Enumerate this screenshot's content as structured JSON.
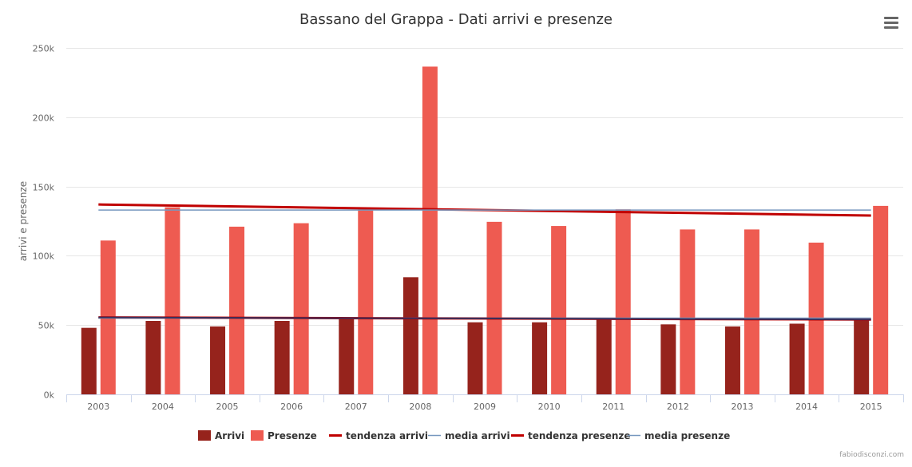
{
  "chart_data": {
    "type": "bar",
    "title": "Bassano del Grappa - Dati arrivi e presenze",
    "ylabel": "arrivi e presenze",
    "xlabel": "",
    "ylim": [
      0,
      250000
    ],
    "yticks": [
      0,
      50000,
      100000,
      150000,
      200000,
      250000
    ],
    "ytick_labels": [
      "0k",
      "50k",
      "100k",
      "150k",
      "200k",
      "250k"
    ],
    "categories": [
      "2003",
      "2004",
      "2005",
      "2006",
      "2007",
      "2008",
      "2009",
      "2010",
      "2011",
      "2012",
      "2013",
      "2014",
      "2015"
    ],
    "grid": true,
    "legend_position": "bottom",
    "series": [
      {
        "name": "Arrivi",
        "kind": "bar",
        "color": "#96231c",
        "values": [
          48000,
          53000,
          49000,
          53000,
          55000,
          84500,
          52000,
          52000,
          55000,
          50500,
          49000,
          51000,
          55000
        ]
      },
      {
        "name": "Presenze",
        "kind": "bar",
        "color": "#ee5b51",
        "values": [
          111000,
          135000,
          121000,
          123500,
          134000,
          236500,
          124500,
          121500,
          133500,
          119000,
          119000,
          109500,
          136000
        ]
      },
      {
        "name": "tendenza arrivi",
        "kind": "line",
        "color": "#c00000",
        "start": 55500,
        "end": 54000
      },
      {
        "name": "media arrivi",
        "kind": "line",
        "color": "#7798bf",
        "value": 55000
      },
      {
        "name": "tendenza presenze",
        "kind": "line",
        "color": "#c00000",
        "start": 137000,
        "end": 129000
      },
      {
        "name": "media presenze",
        "kind": "line",
        "color": "#7798bf",
        "value": 133000
      }
    ],
    "trend_overlay_color": "#3b2e5a"
  },
  "ui": {
    "menu_icon": "hamburger-menu-icon",
    "credits": "fabiodisconzi.com"
  }
}
